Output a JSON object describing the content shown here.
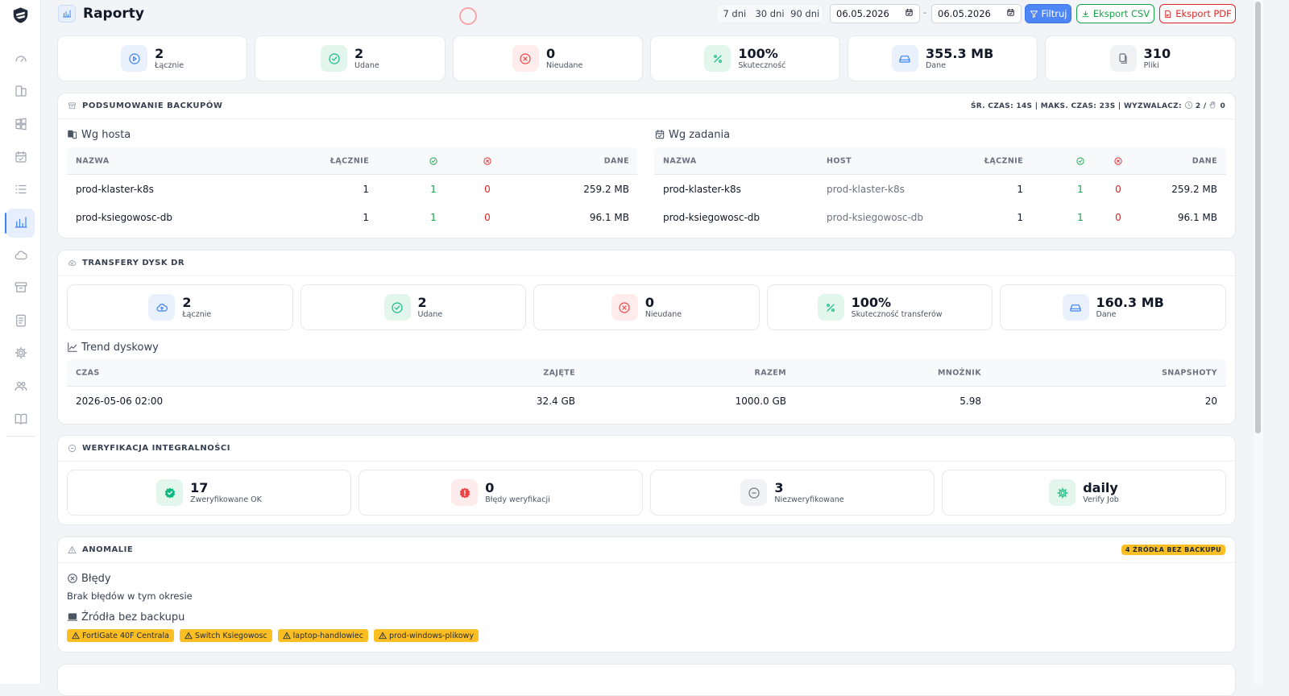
{
  "header": {
    "title": "Raporty",
    "ranges": [
      "7 dni",
      "30 dni",
      "90 dni"
    ],
    "date_from": "06.05.2026",
    "separator": "-",
    "date_to": "06.05.2026",
    "filter": "Filtruj",
    "export_csv": "Eksport CSV",
    "export_pdf": "Eksport PDF"
  },
  "stats": [
    {
      "value": "2",
      "label": "Łącznie"
    },
    {
      "value": "2",
      "label": "Udane"
    },
    {
      "value": "0",
      "label": "Nieudane"
    },
    {
      "value": "100%",
      "label": "Skuteczność"
    },
    {
      "value": "355.3 MB",
      "label": "Dane"
    },
    {
      "value": "310",
      "label": "Pliki"
    }
  ],
  "summary": {
    "title": "PODSUMOWANIE BACKUPÓW",
    "meta": "ŚR. CZAS: 14S | MAKS. CZAS: 23S | WYZWALACZ:",
    "meta_scheduled": "2 /",
    "meta_manual": "0",
    "by_host": {
      "title": "Wg hosta",
      "columns": {
        "name": "NAZWA",
        "total": "ŁĄCZNIE",
        "data": "DANE"
      },
      "rows": [
        [
          "prod-klaster-k8s",
          "1",
          "1",
          "0",
          "259.2 MB"
        ],
        [
          "prod-ksiegowosc-db",
          "1",
          "1",
          "0",
          "96.1 MB"
        ]
      ]
    },
    "by_job": {
      "title": "Wg zadania",
      "columns": {
        "name": "NAZWA",
        "host": "HOST",
        "total": "ŁĄCZNIE",
        "data": "DANE"
      },
      "rows": [
        [
          "prod-klaster-k8s",
          "prod-klaster-k8s",
          "1",
          "1",
          "0",
          "259.2 MB"
        ],
        [
          "prod-ksiegowosc-db",
          "prod-ksiegowosc-db",
          "1",
          "1",
          "0",
          "96.1 MB"
        ]
      ]
    }
  },
  "transfers": {
    "title": "TRANSFERY DYSK DR",
    "stats": [
      {
        "value": "2",
        "label": "Łącznie"
      },
      {
        "value": "2",
        "label": "Udane"
      },
      {
        "value": "0",
        "label": "Nieudane"
      },
      {
        "value": "100%",
        "label": "Skuteczność transferów"
      },
      {
        "value": "160.3 MB",
        "label": "Dane"
      }
    ],
    "trend": {
      "title": "Trend dyskowy",
      "columns": [
        "CZAS",
        "ZAJĘTE",
        "RAZEM",
        "MNOŻNIK",
        "SNAPSHOTY"
      ],
      "rows": [
        [
          "2026-05-06 02:00",
          "32.4 GB",
          "1000.0 GB",
          "5.98",
          "20"
        ]
      ]
    }
  },
  "verification": {
    "title": "WERYFIKACJA INTEGRALNOŚCI",
    "stats": [
      {
        "value": "17",
        "label": "Zweryfikowane OK"
      },
      {
        "value": "0",
        "label": "Błędy weryfikacji"
      },
      {
        "value": "3",
        "label": "Niezweryfikowane"
      },
      {
        "value": "daily",
        "label": "Verify Job"
      }
    ]
  },
  "anomalies": {
    "title": "ANOMALIE",
    "badge": "4 ŹRÓDŁA BEZ BACKUPU",
    "errors_title": "Błędy",
    "errors_text": "Brak błędów w tym okresie",
    "sources_title": "Źródła bez backupu",
    "sources": [
      "FortiGate 40F Centrala",
      "Switch Ksiegowosc",
      "laptop-handlowiec",
      "prod-windows-plikowy"
    ]
  }
}
